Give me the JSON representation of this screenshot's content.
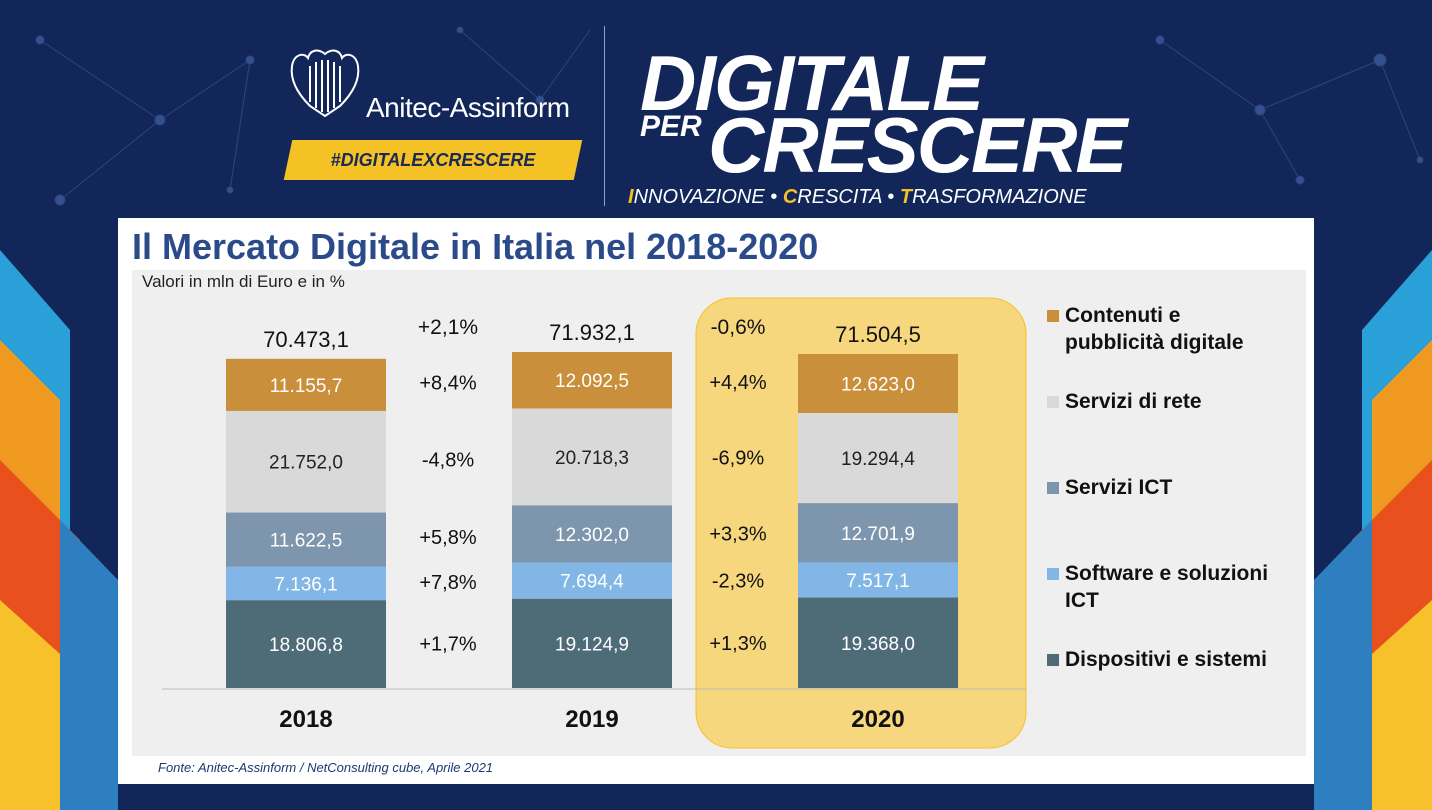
{
  "header": {
    "brand": "Anitec-Assinform",
    "hashtag": "#DIGITALEXCRESCERE",
    "title_line1": "DIGITALE",
    "title_per": "PER",
    "title_line2": "CRESCERE",
    "tagline_parts": [
      {
        "first": "I",
        "rest": "NNOVAZIONE"
      },
      {
        "first": "C",
        "rest": "RESCITA"
      },
      {
        "first": "T",
        "rest": "RASFORMAZIONE"
      }
    ],
    "tagline_sep": " • "
  },
  "colors": {
    "contenuti": "#c98f3a",
    "servizi_rete": "#d9d9d9",
    "servizi_ict": "#7d95ad",
    "software": "#82b6e6",
    "dispositivi": "#4e6b78",
    "highlight": "#f7d77e",
    "accent": "#f4c224"
  },
  "chart_data": {
    "type": "bar",
    "stacked": true,
    "title": "Il Mercato Digitale in Italia nel 2018-2020",
    "subtitle": "Valori in mln di Euro e in %",
    "source": "Fonte: Anitec-Assinform / NetConsulting cube, Aprile 2021",
    "categories": [
      "2018",
      "2019",
      "2020"
    ],
    "totals": [
      70473.1,
      71932.1,
      71504.5
    ],
    "total_labels": [
      "70.473,1",
      "71.932,1",
      "71.504,5"
    ],
    "highlighted_category": "2020",
    "series": [
      {
        "name": "Dispositivi e sistemi",
        "color": "#4e6b78",
        "values": [
          18806.8,
          19124.9,
          19368.0
        ],
        "labels": [
          "18.806,8",
          "19.124,9",
          "19.368,0"
        ],
        "text_color": "#ffffff"
      },
      {
        "name": "Software e soluzioni ICT",
        "color": "#82b6e6",
        "values": [
          7136.1,
          7694.4,
          7517.1
        ],
        "labels": [
          "7.136,1",
          "7.694,4",
          "7.517,1"
        ],
        "text_color": "#ffffff"
      },
      {
        "name": "Servizi ICT",
        "color": "#7d95ad",
        "values": [
          11622.5,
          12302.0,
          12701.9
        ],
        "labels": [
          "11.622,5",
          "12.302,0",
          "12.701,9"
        ],
        "text_color": "#ffffff"
      },
      {
        "name": "Servizi di rete",
        "color": "#d9d9d9",
        "values": [
          21752.0,
          20718.3,
          19294.4
        ],
        "labels": [
          "21.752,0",
          "20.718,3",
          "19.294,4"
        ],
        "text_color": "#222222"
      },
      {
        "name": "Contenuti e pubblicità digitale",
        "color": "#c98f3a",
        "values": [
          11155.7,
          12092.5,
          12623.0
        ],
        "labels": [
          "11.155,7",
          "12.092,5",
          "12.623,0"
        ],
        "text_color": "#ffffff"
      }
    ],
    "growth": {
      "2018-2019": {
        "total": "+2,1%",
        "Contenuti e pubblicità digitale": "+8,4%",
        "Servizi di rete": "-4,8%",
        "Servizi ICT": "+5,8%",
        "Software e soluzioni ICT": "+7,8%",
        "Dispositivi e sistemi": "+1,7%"
      },
      "2019-2020": {
        "total": "-0,6%",
        "Contenuti e pubblicità digitale": "+4,4%",
        "Servizi di rete": "-6,9%",
        "Servizi ICT": "+3,3%",
        "Software e soluzioni ICT": "-2,3%",
        "Dispositivi e sistemi": "+1,3%"
      }
    },
    "legend": [
      {
        "label": "Contenuti e pubblicità digitale",
        "lines": [
          "Contenuti e",
          "pubblicità digitale"
        ],
        "color": "#c98f3a"
      },
      {
        "label": "Servizi di rete",
        "lines": [
          "Servizi di rete"
        ],
        "color": "#d9d9d9"
      },
      {
        "label": "Servizi ICT",
        "lines": [
          "Servizi ICT"
        ],
        "color": "#7d95ad"
      },
      {
        "label": "Software e soluzioni ICT",
        "lines": [
          "Software e soluzioni",
          "ICT"
        ],
        "color": "#82b6e6"
      },
      {
        "label": "Dispositivi e sistemi",
        "lines": [
          "Dispositivi e sistemi"
        ],
        "color": "#4e6b78"
      }
    ],
    "legend_position": "right",
    "ylim": [
      0,
      80000
    ],
    "grid": false
  }
}
